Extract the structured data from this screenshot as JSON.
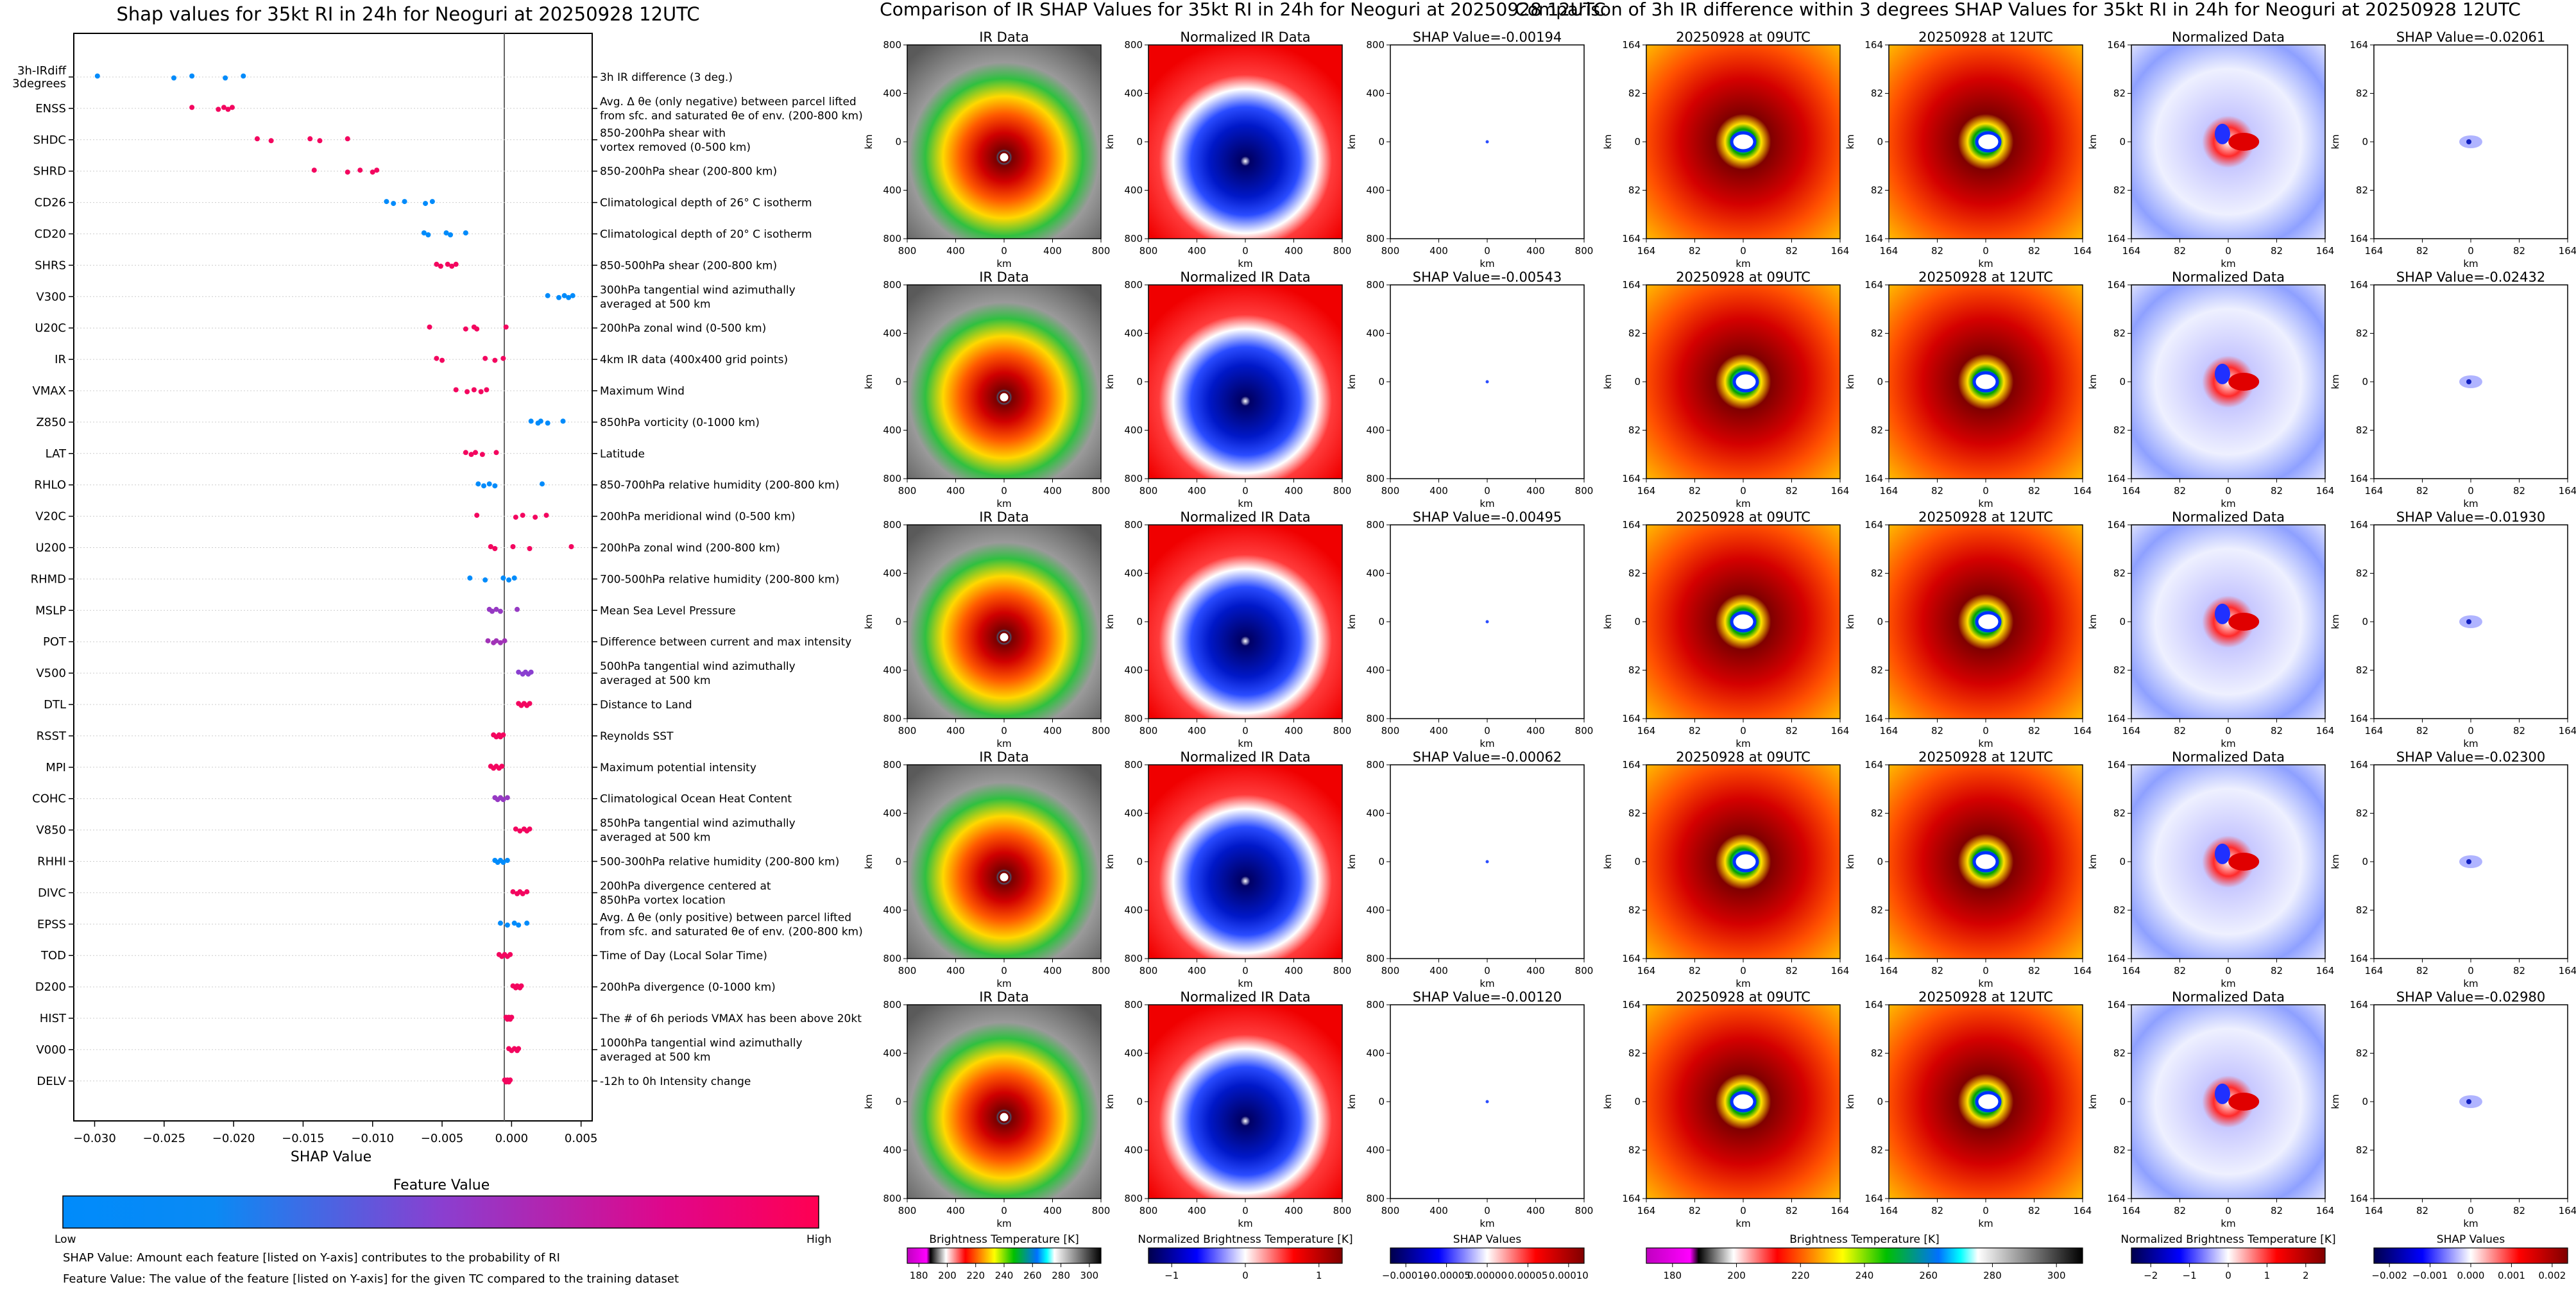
{
  "shap_panel": {
    "title": "Shap values for 35kt RI in 24h for Neoguri at 20250928 12UTC",
    "xlabel": "SHAP Value",
    "colorbar_title": "Feature Value",
    "colorbar_low": "Low",
    "colorbar_high": "High",
    "note_1": "SHAP Value: Amount each feature [listed on Y-axis] contributes to the probability of RI",
    "note_2": "Feature Value: The value of the feature [listed on Y-axis] for the given TC compared to the training dataset",
    "colors": {
      "low": "#008bfb",
      "mid": "#8a3fd0",
      "high": "#ff0052"
    }
  },
  "ir_section": {
    "title": "Comparison of IR SHAP Values for 35kt RI in 24h for Neoguri at 20250928 12UTC",
    "column_titles": [
      "IR Data",
      "Normalized IR Data"
    ],
    "shap_titles": [
      "SHAP Value=-0.00194",
      "SHAP Value=-0.00543",
      "SHAP Value=-0.00495",
      "SHAP Value=-0.00062",
      "SHAP Value=-0.00120"
    ],
    "ticks": [
      "800",
      "400",
      "0",
      "400",
      "800"
    ],
    "axis_label": "km",
    "colorbars": [
      {
        "label": "Brightness Temperature [K]",
        "ticks": [
          "180",
          "200",
          "220",
          "240",
          "260",
          "280",
          "300"
        ]
      },
      {
        "label": "Normalized Brightness Temperature [K]",
        "ticks": [
          "−1",
          "0",
          "1"
        ]
      },
      {
        "label": "SHAP Values",
        "ticks": [
          "−0.00010",
          "−0.00005",
          "0.00000",
          "0.00005",
          "0.00010"
        ]
      }
    ]
  },
  "diff_section": {
    "title": "Comparison of 3h IR difference within 3 degrees SHAP Values for 35kt RI in 24h for Neoguri at 20250928 12UTC",
    "column_titles": [
      "20250928 at 09UTC",
      "20250928 at 12UTC",
      "Normalized Data"
    ],
    "shap_titles": [
      "SHAP Value=-0.02061",
      "SHAP Value=-0.02432",
      "SHAP Value=-0.01930",
      "SHAP Value=-0.02300",
      "SHAP Value=-0.02980"
    ],
    "ticks": [
      "164",
      "82",
      "0",
      "82",
      "164"
    ],
    "axis_label": "km",
    "colorbars": [
      {
        "label": "Brightness Temperature [K]",
        "ticks": [
          "180",
          "200",
          "220",
          "240",
          "260",
          "280",
          "300"
        ]
      },
      {
        "label": "Normalized Brightness Temperature [K]",
        "ticks": [
          "−2",
          "−1",
          "0",
          "1",
          "2"
        ]
      },
      {
        "label": "SHAP Values",
        "ticks": [
          "−0.002",
          "−0.001",
          "0.000",
          "0.001",
          "0.002"
        ]
      }
    ]
  },
  "chart_data": {
    "type": "scatter",
    "title": "Shap values for 35kt RI in 24h for Neoguri at 20250928 12UTC",
    "xlabel": "SHAP Value",
    "xlim": [
      -0.0315,
      0.0058
    ],
    "xticks": [
      "−0.030",
      "−0.025",
      "−0.020",
      "−0.015",
      "−0.010",
      "−0.005",
      "0.000",
      "0.005"
    ],
    "xtick_values": [
      -0.03,
      -0.025,
      -0.02,
      -0.015,
      -0.01,
      -0.005,
      0.0,
      0.005
    ],
    "features": [
      {
        "code": "3h-IRdiff\n3degrees",
        "desc": "3h IR difference (3 deg.)",
        "shap": [
          -0.0298,
          -0.0243,
          -0.023,
          -0.0206,
          -0.0193
        ],
        "fv": 0.0
      },
      {
        "code": "ENSS",
        "desc": "Avg. Δ θe (only negative) between parcel lifted\nfrom sfc. and saturated θe of env. (200-800 km)",
        "shap": [
          -0.023,
          -0.0211,
          -0.0207,
          -0.0204,
          -0.0201
        ],
        "fv": 0.95
      },
      {
        "code": "SHDC",
        "desc": "850-200hPa shear with\nvortex removed (0-500 km)",
        "shap": [
          -0.0183,
          -0.0173,
          -0.0145,
          -0.0138,
          -0.0118
        ],
        "fv": 0.95
      },
      {
        "code": "SHRD",
        "desc": "850-200hPa shear (200-800 km)",
        "shap": [
          -0.0142,
          -0.0118,
          -0.0109,
          -0.01,
          -0.0097
        ],
        "fv": 0.95
      },
      {
        "code": "CD26",
        "desc": "Climatological depth of 26° C isotherm",
        "shap": [
          -0.009,
          -0.0085,
          -0.0077,
          -0.0062,
          -0.0057
        ],
        "fv": 0.0
      },
      {
        "code": "CD20",
        "desc": "Climatological depth of 20° C isotherm",
        "shap": [
          -0.0063,
          -0.006,
          -0.0047,
          -0.0044,
          -0.0033
        ],
        "fv": 0.0
      },
      {
        "code": "SHRS",
        "desc": "850-500hPa shear (200-800 km)",
        "shap": [
          -0.0054,
          -0.0051,
          -0.0046,
          -0.0043,
          -0.004
        ],
        "fv": 0.95
      },
      {
        "code": "V300",
        "desc": "300hPa tangential wind azimuthally\naveraged at 500 km",
        "shap": [
          0.0026,
          0.0034,
          0.0038,
          0.0041,
          0.0044
        ],
        "fv": 0.0
      },
      {
        "code": "U20C",
        "desc": "200hPa zonal wind (0-500 km)",
        "shap": [
          -0.0059,
          -0.0033,
          -0.0027,
          -0.0025,
          -0.0004
        ],
        "fv": 0.95
      },
      {
        "code": "IR",
        "desc": "4km IR data (400x400 grid points)",
        "shap": [
          -0.0054,
          -0.005,
          -0.0019,
          -0.0012,
          -0.0006
        ],
        "fv": 0.95
      },
      {
        "code": "VMAX",
        "desc": "Maximum Wind",
        "shap": [
          -0.004,
          -0.0032,
          -0.0027,
          -0.0022,
          -0.0018
        ],
        "fv": 0.95
      },
      {
        "code": "Z850",
        "desc": "850hPa vorticity (0-1000 km)",
        "shap": [
          0.0014,
          0.0019,
          0.0021,
          0.0026,
          0.0037
        ],
        "fv": 0.0
      },
      {
        "code": "LAT",
        "desc": "Latitude",
        "shap": [
          -0.0033,
          -0.0029,
          -0.0026,
          -0.0021,
          -0.0011
        ],
        "fv": 0.95
      },
      {
        "code": "RHLO",
        "desc": "850-700hPa relative humidity (200-800 km)",
        "shap": [
          -0.0024,
          -0.002,
          -0.0016,
          -0.0012,
          0.0022
        ],
        "fv": 0.0
      },
      {
        "code": "V20C",
        "desc": "200hPa meridional wind (0-500 km)",
        "shap": [
          -0.0025,
          0.0003,
          0.0008,
          0.0017,
          0.0025
        ],
        "fv": 0.95
      },
      {
        "code": "U200",
        "desc": "200hPa zonal wind (200-800 km)",
        "shap": [
          -0.0015,
          -0.0012,
          0.0001,
          0.0013,
          0.0043
        ],
        "fv": 0.95
      },
      {
        "code": "RHMD",
        "desc": "700-500hPa relative humidity (200-800 km)",
        "shap": [
          -0.003,
          -0.0019,
          -0.0006,
          -0.0002,
          0.0002
        ],
        "fv": 0.0
      },
      {
        "code": "MSLP",
        "desc": "Mean Sea Level Pressure",
        "shap": [
          -0.0016,
          -0.0014,
          -0.0011,
          -0.0008,
          0.0004
        ],
        "fv": 0.55
      },
      {
        "code": "POT",
        "desc": "Difference between current and max intensity",
        "shap": [
          -0.0017,
          -0.0013,
          -0.0011,
          -0.0008,
          -0.0005
        ],
        "fv": 0.6
      },
      {
        "code": "V500",
        "desc": "500hPa tangential wind azimuthally\naveraged at 500 km",
        "shap": [
          0.0005,
          0.0008,
          0.001,
          0.0012,
          0.0014
        ],
        "fv": 0.5
      },
      {
        "code": "DTL",
        "desc": "Distance to Land",
        "shap": [
          0.0005,
          0.0007,
          0.0009,
          0.0011,
          0.0013
        ],
        "fv": 0.95
      },
      {
        "code": "RSST",
        "desc": "Reynolds SST",
        "shap": [
          -0.0013,
          -0.0011,
          -0.0009,
          -0.0008,
          -0.0006
        ],
        "fv": 0.95
      },
      {
        "code": "MPI",
        "desc": "Maximum potential intensity",
        "shap": [
          -0.0015,
          -0.0013,
          -0.0011,
          -0.0009,
          -0.0007
        ],
        "fv": 0.95
      },
      {
        "code": "COHC",
        "desc": "Climatological Ocean Heat Content",
        "shap": [
          -0.0012,
          -0.001,
          -0.0008,
          -0.0006,
          -0.0003
        ],
        "fv": 0.55
      },
      {
        "code": "V850",
        "desc": "850hPa tangential wind azimuthally\naveraged at 500 km",
        "shap": [
          0.0003,
          0.0006,
          0.0009,
          0.0011,
          0.0013
        ],
        "fv": 0.95
      },
      {
        "code": "RHHI",
        "desc": "500-300hPa relative humidity (200-800 km)",
        "shap": [
          -0.0012,
          -0.001,
          -0.0008,
          -0.0006,
          -0.0003
        ],
        "fv": 0.0
      },
      {
        "code": "DIVC",
        "desc": "200hPa divergence centered at\n850hPa vortex location",
        "shap": [
          0.0001,
          0.0004,
          0.0006,
          0.0008,
          0.0011
        ],
        "fv": 0.95
      },
      {
        "code": "EPSS",
        "desc": "Avg. Δ θe (only positive) between parcel lifted\nfrom sfc. and saturated θe of env. (200-800 km)",
        "shap": [
          -0.0008,
          -0.0003,
          0.0002,
          0.0005,
          0.0011
        ],
        "fv": 0.0
      },
      {
        "code": "TOD",
        "desc": "Time of Day (Local Solar Time)",
        "shap": [
          -0.0009,
          -0.0007,
          -0.0005,
          -0.0003,
          -0.0001
        ],
        "fv": 0.95
      },
      {
        "code": "D200",
        "desc": "200hPa divergence (0-1000 km)",
        "shap": [
          0.0001,
          0.0003,
          0.0004,
          0.0006,
          0.0007
        ],
        "fv": 0.95
      },
      {
        "code": "HIST",
        "desc": "The # of 6h periods VMAX has been above 20kt",
        "shap": [
          -0.0004,
          -0.0003,
          -0.0002,
          -0.0001,
          0.0
        ],
        "fv": 0.95
      },
      {
        "code": "V000",
        "desc": "1000hPa tangential wind azimuthally\naveraged at 500 km",
        "shap": [
          -0.0002,
          0.0,
          0.0002,
          0.0004,
          0.0005
        ],
        "fv": 0.95
      },
      {
        "code": "DELV",
        "desc": "-12h to 0h Intensity change",
        "shap": [
          -0.0005,
          -0.0004,
          -0.0003,
          -0.0002,
          -0.0001
        ],
        "fv": 0.95
      }
    ]
  }
}
